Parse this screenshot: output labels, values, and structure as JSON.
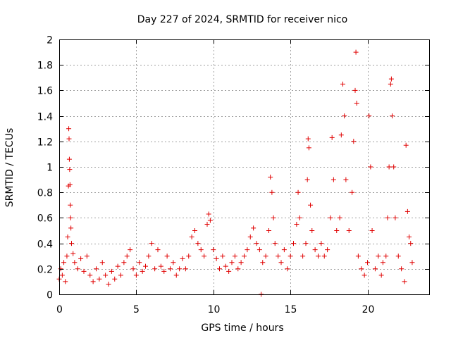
{
  "chart_data": {
    "type": "scatter",
    "title": "Day 227 of 2024, SRMTID for receiver nico",
    "xlabel": "GPS time / hours",
    "ylabel": "SRMTID / TECUs",
    "xlim": [
      0,
      24
    ],
    "ylim": [
      0,
      2
    ],
    "xticks": [
      0,
      5,
      10,
      15,
      20
    ],
    "xtick_labels": [
      "0",
      "5",
      "10",
      "15",
      "20"
    ],
    "yticks": [
      0,
      0.2,
      0.4,
      0.6,
      0.8,
      1,
      1.2,
      1.4,
      1.6,
      1.8,
      2
    ],
    "ytick_labels": [
      "0",
      "0.2",
      "0.4",
      "0.6",
      "0.8",
      "1",
      "1.2",
      "1.4",
      "1.6",
      "1.8",
      "2"
    ],
    "grid": true,
    "marker": "+",
    "color": "#e00000",
    "series": [
      {
        "name": "SRMTID",
        "points": [
          [
            0.0,
            0.12
          ],
          [
            0.1,
            0.2
          ],
          [
            0.2,
            0.15
          ],
          [
            0.3,
            0.25
          ],
          [
            0.4,
            0.1
          ],
          [
            0.5,
            0.3
          ],
          [
            0.55,
            0.45
          ],
          [
            0.6,
            0.85
          ],
          [
            0.62,
            1.3
          ],
          [
            0.64,
            1.22
          ],
          [
            0.66,
            1.06
          ],
          [
            0.68,
            0.98
          ],
          [
            0.7,
            0.86
          ],
          [
            0.72,
            0.7
          ],
          [
            0.74,
            0.6
          ],
          [
            0.76,
            0.52
          ],
          [
            0.8,
            0.4
          ],
          [
            0.9,
            0.32
          ],
          [
            1.0,
            0.25
          ],
          [
            1.2,
            0.2
          ],
          [
            1.4,
            0.28
          ],
          [
            1.6,
            0.18
          ],
          [
            1.8,
            0.3
          ],
          [
            2.0,
            0.15
          ],
          [
            2.2,
            0.1
          ],
          [
            2.4,
            0.2
          ],
          [
            2.6,
            0.12
          ],
          [
            2.8,
            0.25
          ],
          [
            3.0,
            0.15
          ],
          [
            3.2,
            0.08
          ],
          [
            3.4,
            0.18
          ],
          [
            3.6,
            0.12
          ],
          [
            3.8,
            0.22
          ],
          [
            4.0,
            0.15
          ],
          [
            4.2,
            0.25
          ],
          [
            4.4,
            0.3
          ],
          [
            4.6,
            0.35
          ],
          [
            4.8,
            0.2
          ],
          [
            5.0,
            0.15
          ],
          [
            5.2,
            0.25
          ],
          [
            5.4,
            0.18
          ],
          [
            5.6,
            0.22
          ],
          [
            5.8,
            0.3
          ],
          [
            6.0,
            0.4
          ],
          [
            6.2,
            0.2
          ],
          [
            6.4,
            0.35
          ],
          [
            6.6,
            0.22
          ],
          [
            6.8,
            0.18
          ],
          [
            7.0,
            0.3
          ],
          [
            7.2,
            0.2
          ],
          [
            7.4,
            0.25
          ],
          [
            7.6,
            0.15
          ],
          [
            7.8,
            0.2
          ],
          [
            8.0,
            0.28
          ],
          [
            8.2,
            0.2
          ],
          [
            8.4,
            0.3
          ],
          [
            8.6,
            0.45
          ],
          [
            8.8,
            0.5
          ],
          [
            9.0,
            0.4
          ],
          [
            9.2,
            0.35
          ],
          [
            9.4,
            0.3
          ],
          [
            9.6,
            0.55
          ],
          [
            9.7,
            0.63
          ],
          [
            9.8,
            0.58
          ],
          [
            10.0,
            0.35
          ],
          [
            10.2,
            0.28
          ],
          [
            10.4,
            0.2
          ],
          [
            10.6,
            0.3
          ],
          [
            10.8,
            0.22
          ],
          [
            11.0,
            0.18
          ],
          [
            11.2,
            0.25
          ],
          [
            11.4,
            0.3
          ],
          [
            11.6,
            0.2
          ],
          [
            11.8,
            0.25
          ],
          [
            12.0,
            0.3
          ],
          [
            12.2,
            0.35
          ],
          [
            12.4,
            0.45
          ],
          [
            12.6,
            0.52
          ],
          [
            12.8,
            0.4
          ],
          [
            13.0,
            0.35
          ],
          [
            13.1,
            0.0
          ],
          [
            13.2,
            0.25
          ],
          [
            13.4,
            0.3
          ],
          [
            13.6,
            0.5
          ],
          [
            13.7,
            0.92
          ],
          [
            13.8,
            0.8
          ],
          [
            13.9,
            0.6
          ],
          [
            14.0,
            0.4
          ],
          [
            14.2,
            0.3
          ],
          [
            14.4,
            0.25
          ],
          [
            14.6,
            0.35
          ],
          [
            14.8,
            0.2
          ],
          [
            15.0,
            0.3
          ],
          [
            15.2,
            0.4
          ],
          [
            15.4,
            0.55
          ],
          [
            15.5,
            0.8
          ],
          [
            15.6,
            0.6
          ],
          [
            15.8,
            0.3
          ],
          [
            16.0,
            0.4
          ],
          [
            16.1,
            0.9
          ],
          [
            16.15,
            1.22
          ],
          [
            16.2,
            1.15
          ],
          [
            16.3,
            0.7
          ],
          [
            16.4,
            0.5
          ],
          [
            16.6,
            0.35
          ],
          [
            16.8,
            0.3
          ],
          [
            17.0,
            0.4
          ],
          [
            17.2,
            0.3
          ],
          [
            17.4,
            0.35
          ],
          [
            17.6,
            0.6
          ],
          [
            17.7,
            1.23
          ],
          [
            17.8,
            0.9
          ],
          [
            18.0,
            0.5
          ],
          [
            18.2,
            0.6
          ],
          [
            18.3,
            1.25
          ],
          [
            18.4,
            1.65
          ],
          [
            18.5,
            1.4
          ],
          [
            18.6,
            0.9
          ],
          [
            18.8,
            0.5
          ],
          [
            19.0,
            0.8
          ],
          [
            19.1,
            1.2
          ],
          [
            19.2,
            1.6
          ],
          [
            19.25,
            1.9
          ],
          [
            19.3,
            1.5
          ],
          [
            19.4,
            0.3
          ],
          [
            19.6,
            0.2
          ],
          [
            19.8,
            0.15
          ],
          [
            20.0,
            0.25
          ],
          [
            20.1,
            1.4
          ],
          [
            20.2,
            1.0
          ],
          [
            20.3,
            0.5
          ],
          [
            20.5,
            0.2
          ],
          [
            20.7,
            0.3
          ],
          [
            20.9,
            0.15
          ],
          [
            21.0,
            0.25
          ],
          [
            21.2,
            0.3
          ],
          [
            21.3,
            0.6
          ],
          [
            21.4,
            1.0
          ],
          [
            21.5,
            1.65
          ],
          [
            21.55,
            1.69
          ],
          [
            21.6,
            1.4
          ],
          [
            21.7,
            1.0
          ],
          [
            21.8,
            0.6
          ],
          [
            22.0,
            0.3
          ],
          [
            22.2,
            0.2
          ],
          [
            22.4,
            0.1
          ],
          [
            22.5,
            1.17
          ],
          [
            22.6,
            0.65
          ],
          [
            22.7,
            0.45
          ],
          [
            22.8,
            0.4
          ],
          [
            22.9,
            0.25
          ]
        ]
      }
    ]
  }
}
